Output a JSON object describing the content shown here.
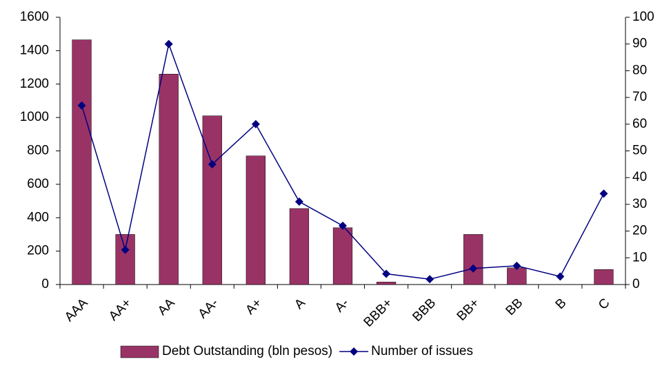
{
  "chart_data": {
    "type": "bar",
    "categories": [
      "AAA",
      "AA+",
      "AA",
      "AA-",
      "A+",
      "A",
      "A-",
      "BBB+",
      "BBB",
      "BB+",
      "BB",
      "B",
      "C"
    ],
    "series": [
      {
        "name": "Debt Outstanding (bln pesos)",
        "type": "bar",
        "color": "#993366",
        "values": [
          1465,
          300,
          1260,
          1010,
          770,
          455,
          340,
          15,
          0,
          300,
          100,
          0,
          90
        ]
      },
      {
        "name": "Number of issues",
        "type": "line",
        "axis": "y2",
        "color": "#000080",
        "values": [
          67,
          13,
          90,
          45,
          60,
          31,
          22,
          4,
          2,
          6,
          7,
          3,
          34
        ]
      }
    ],
    "ylim": [
      0,
      1600
    ],
    "yticks": [
      0,
      200,
      400,
      600,
      800,
      1000,
      1200,
      1400,
      1600
    ],
    "y2lim": [
      0,
      100
    ],
    "y2ticks": [
      0,
      10,
      20,
      30,
      40,
      50,
      60,
      70,
      80,
      90,
      100
    ],
    "grid": false,
    "legend": "bottom"
  }
}
